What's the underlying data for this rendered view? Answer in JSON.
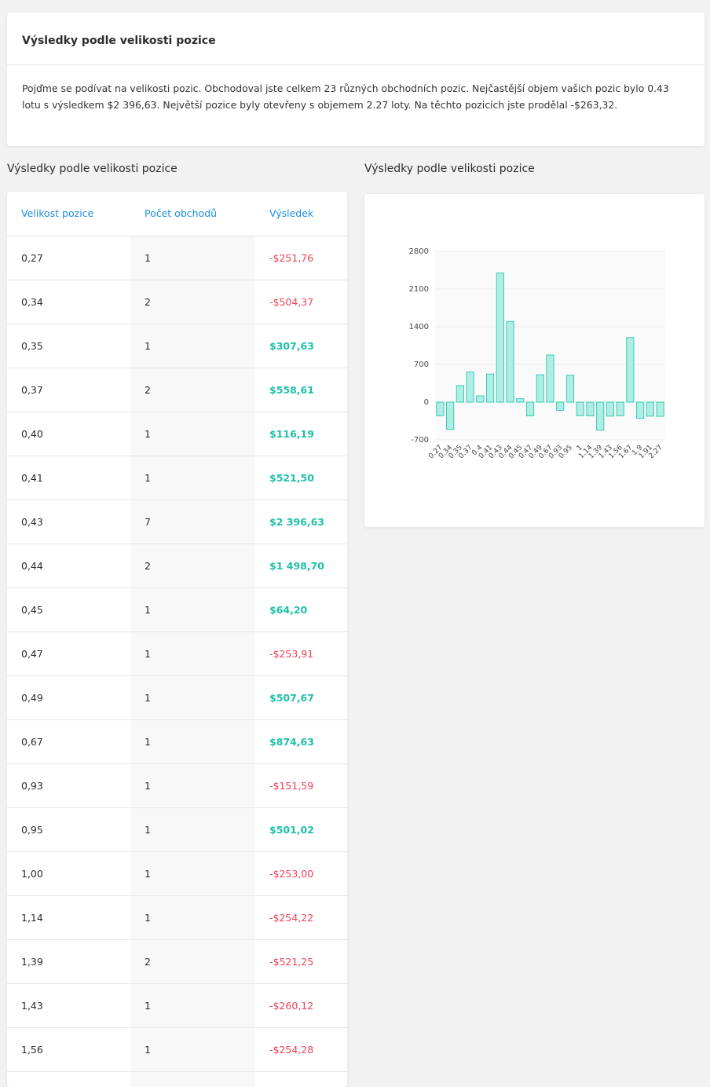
{
  "summary": {
    "title": "Výsledky podle velikosti pozice",
    "text": "Pojďme se podívat na velikosti pozic. Obchodoval jste celkem 23 různých obchodních pozic. Nejčastější objem vašich pozic bylo 0.43 lotu s výsledkem $2 396,63. Největší pozice byly otevřeny s objemem 2.27 loty. Na těchto pozicích jste prodělal -$263,32."
  },
  "table_section": {
    "title": "Výsledky podle velikosti pozice",
    "headers": [
      "Velikost pozice",
      "Počet obchodů",
      "Výsledek"
    ],
    "rows": [
      {
        "size": "0,27",
        "count": "1",
        "result": "-$251,76",
        "positive": false
      },
      {
        "size": "0,34",
        "count": "2",
        "result": "-$504,37",
        "positive": false
      },
      {
        "size": "0,35",
        "count": "1",
        "result": "$307,63",
        "positive": true
      },
      {
        "size": "0,37",
        "count": "2",
        "result": "$558,61",
        "positive": true
      },
      {
        "size": "0,40",
        "count": "1",
        "result": "$116,19",
        "positive": true
      },
      {
        "size": "0,41",
        "count": "1",
        "result": "$521,50",
        "positive": true
      },
      {
        "size": "0,43",
        "count": "7",
        "result": "$2 396,63",
        "positive": true
      },
      {
        "size": "0,44",
        "count": "2",
        "result": "$1 498,70",
        "positive": true
      },
      {
        "size": "0,45",
        "count": "1",
        "result": "$64,20",
        "positive": true
      },
      {
        "size": "0,47",
        "count": "1",
        "result": "-$253,91",
        "positive": false
      },
      {
        "size": "0,49",
        "count": "1",
        "result": "$507,67",
        "positive": true
      },
      {
        "size": "0,67",
        "count": "1",
        "result": "$874,63",
        "positive": true
      },
      {
        "size": "0,93",
        "count": "1",
        "result": "-$151,59",
        "positive": false
      },
      {
        "size": "0,95",
        "count": "1",
        "result": "$501,02",
        "positive": true
      },
      {
        "size": "1,00",
        "count": "1",
        "result": "-$253,00",
        "positive": false
      },
      {
        "size": "1,14",
        "count": "1",
        "result": "-$254,22",
        "positive": false
      },
      {
        "size": "1,39",
        "count": "2",
        "result": "-$521,25",
        "positive": false
      },
      {
        "size": "1,43",
        "count": "1",
        "result": "-$260,12",
        "positive": false
      },
      {
        "size": "1,56",
        "count": "1",
        "result": "-$254,28",
        "positive": false
      },
      {
        "size": "",
        "count": "",
        "result": "",
        "positive": false
      }
    ]
  },
  "chart_section": {
    "title": "Výsledky podle velikosti pozice"
  },
  "colors": {
    "positive": "#1cc2a6",
    "negative": "#ef4054",
    "header_link": "#1a8fe0",
    "bar_fill": "#aeeee4",
    "bar_stroke": "#3cc9b2"
  },
  "chart_data": {
    "type": "bar",
    "categories": [
      "0.27",
      "0.34",
      "0.35",
      "0.37",
      "0.4",
      "0.41",
      "0.43",
      "0.44",
      "0.45",
      "0.47",
      "0.49",
      "0.67",
      "0.93",
      "0.95",
      "1",
      "1.14",
      "1.39",
      "1.43",
      "1.56",
      "1.67",
      "1.9",
      "1.91",
      "2.27"
    ],
    "values": [
      -251.76,
      -504.37,
      307.63,
      558.61,
      116.19,
      521.5,
      2396.63,
      1498.7,
      64.2,
      -253.91,
      507.67,
      874.63,
      -151.59,
      501.02,
      -253.0,
      -254.22,
      -521.25,
      -260.12,
      -254.28,
      1200,
      -300,
      -260,
      -263.32
    ],
    "yticks": [
      2800,
      2100,
      1400,
      700,
      0,
      -700
    ],
    "ylim": [
      -700,
      2800
    ],
    "grid": true,
    "title": "",
    "xlabel": "",
    "ylabel": ""
  }
}
